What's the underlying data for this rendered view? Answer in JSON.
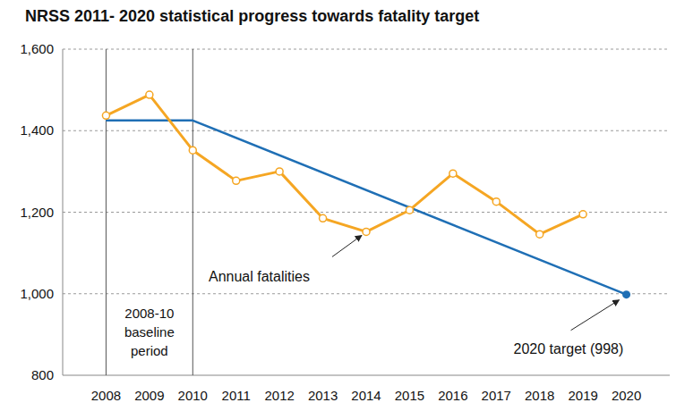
{
  "chart_data": {
    "type": "line",
    "title": "NRSS 2011- 2020 statistical progress towards fatality target",
    "x": [
      2008,
      2009,
      2010,
      2011,
      2012,
      2013,
      2014,
      2015,
      2016,
      2017,
      2018,
      2019,
      2020
    ],
    "xlim": [
      2007,
      2021
    ],
    "xticks": [
      2008,
      2009,
      2010,
      2011,
      2012,
      2013,
      2014,
      2015,
      2016,
      2017,
      2018,
      2019,
      2020
    ],
    "ylim": [
      800,
      1600
    ],
    "yticks": [
      800,
      {
        "value": 1000,
        "label": "1,000"
      },
      {
        "value": 1200,
        "label": "1,200"
      },
      {
        "value": 1400,
        "label": "1,400"
      },
      {
        "value": 1600,
        "label": "1,600"
      }
    ],
    "grid": true,
    "series": [
      {
        "name": "Annual fatalities",
        "color": "#f5a623",
        "marker": "circle",
        "values": [
          1437,
          1488,
          1352,
          1277,
          1300,
          1185,
          1152,
          1205,
          1295,
          1226,
          1146,
          1195,
          null
        ]
      },
      {
        "name": "2020 target (998)",
        "color": "#1f6fb5",
        "marker": "end",
        "x": [
          2008,
          2010,
          2020
        ],
        "values": [
          1425,
          1425,
          998
        ]
      }
    ],
    "baseline_period": {
      "label": "2008-10 baseline period",
      "x": [
        2008,
        2010
      ]
    }
  }
}
